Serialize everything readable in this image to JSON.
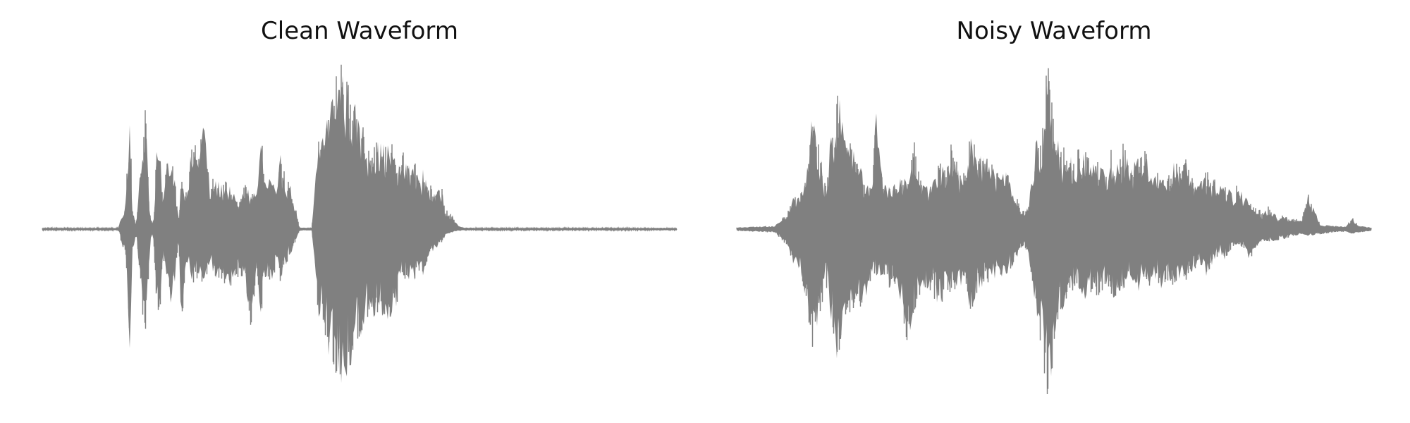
{
  "chart_data": [
    {
      "type": "line",
      "title": "Clean Waveform",
      "xlabel": "",
      "ylabel": "",
      "axes_visible": false,
      "grid": false,
      "color": "#808080",
      "ylim": [
        -1.0,
        1.0
      ],
      "series": [
        {
          "envelope_positions": [
            0.0,
            0.05,
            0.12,
            0.132,
            0.138,
            0.142,
            0.148,
            0.155,
            0.163,
            0.17,
            0.175,
            0.18,
            0.185,
            0.19,
            0.2,
            0.21,
            0.215,
            0.22,
            0.228,
            0.235,
            0.245,
            0.255,
            0.265,
            0.27,
            0.275,
            0.28,
            0.29,
            0.3,
            0.31,
            0.32,
            0.33,
            0.338,
            0.345,
            0.35,
            0.36,
            0.37,
            0.375,
            0.385,
            0.395,
            0.405,
            0.415,
            0.425,
            0.435,
            0.44,
            0.47,
            0.51,
            0.54,
            0.55,
            0.56,
            0.568,
            0.575,
            0.585,
            0.59,
            0.595,
            0.6,
            0.605,
            0.61,
            0.62,
            0.63,
            0.635,
            0.645,
            0.655,
            0.665,
            0.675,
            0.685,
            0.69,
            0.7,
            0.71,
            0.72,
            0.73,
            0.74,
            0.75,
            0.76,
            0.8,
            0.9,
            0.98,
            1.0
          ],
          "envelope_upper": [
            0.005,
            0.005,
            0.006,
            0.2,
            0.75,
            0.15,
            0.02,
            0.4,
            0.77,
            0.08,
            0.02,
            0.45,
            0.5,
            0.18,
            0.52,
            0.3,
            0.05,
            0.42,
            0.18,
            0.5,
            0.48,
            0.72,
            0.2,
            0.32,
            0.3,
            0.27,
            0.3,
            0.22,
            0.15,
            0.27,
            0.22,
            0.25,
            0.6,
            0.3,
            0.33,
            0.2,
            0.45,
            0.32,
            0.22,
            0.01,
            0.008,
            0.01,
            0.57,
            0.6,
            1.0,
            0.55,
            0.5,
            0.52,
            0.35,
            0.47,
            0.37,
            0.4,
            0.42,
            0.27,
            0.35,
            0.32,
            0.27,
            0.2,
            0.27,
            0.12,
            0.1,
            0.02,
            0.01,
            0.008,
            0.006,
            0.005,
            0.005,
            0.005,
            0.005,
            0.005,
            0.005,
            0.005,
            0.005,
            0.005,
            0.005,
            0.008,
            0.005
          ],
          "envelope_lower": [
            -0.005,
            -0.005,
            -0.006,
            -0.2,
            -0.73,
            -0.15,
            -0.02,
            -0.38,
            -0.76,
            -0.08,
            -0.02,
            -0.45,
            -0.53,
            -0.18,
            -0.47,
            -0.3,
            -0.05,
            -0.72,
            -0.18,
            -0.32,
            -0.3,
            -0.32,
            -0.2,
            -0.32,
            -0.3,
            -0.3,
            -0.32,
            -0.35,
            -0.28,
            -0.33,
            -0.6,
            -0.3,
            -0.55,
            -0.3,
            -0.3,
            -0.25,
            -0.3,
            -0.2,
            -0.12,
            -0.01,
            -0.008,
            -0.01,
            -0.58,
            -0.57,
            -1.0,
            -0.52,
            -0.5,
            -0.55,
            -0.45,
            -0.3,
            -0.35,
            -0.32,
            -0.28,
            -0.25,
            -0.28,
            -0.22,
            -0.15,
            -0.12,
            -0.08,
            -0.05,
            -0.02,
            -0.01,
            -0.008,
            -0.006,
            -0.005,
            -0.005,
            -0.005,
            -0.005,
            -0.005,
            -0.005,
            -0.005,
            -0.005,
            -0.005,
            -0.005,
            -0.005,
            -0.008,
            -0.005
          ]
        }
      ]
    },
    {
      "type": "line",
      "title": "Noisy Waveform",
      "xlabel": "",
      "ylabel": "",
      "axes_visible": false,
      "grid": false,
      "color": "#808080",
      "ylim": [
        -1.0,
        1.0
      ],
      "series": [
        {
          "envelope_positions": [
            0.0,
            0.03,
            0.06,
            0.08,
            0.09,
            0.1,
            0.11,
            0.12,
            0.13,
            0.14,
            0.15,
            0.16,
            0.17,
            0.18,
            0.19,
            0.2,
            0.21,
            0.22,
            0.23,
            0.24,
            0.25,
            0.26,
            0.27,
            0.28,
            0.29,
            0.3,
            0.31,
            0.32,
            0.33,
            0.34,
            0.35,
            0.36,
            0.37,
            0.38,
            0.39,
            0.4,
            0.41,
            0.42,
            0.43,
            0.44,
            0.45,
            0.46,
            0.47,
            0.48,
            0.49,
            0.5,
            0.51,
            0.52,
            0.53,
            0.54,
            0.55,
            0.56,
            0.57,
            0.58,
            0.59,
            0.6,
            0.61,
            0.62,
            0.63,
            0.64,
            0.65,
            0.66,
            0.67,
            0.68,
            0.69,
            0.7,
            0.71,
            0.72,
            0.73,
            0.74,
            0.75,
            0.76,
            0.77,
            0.78,
            0.79,
            0.8,
            0.81,
            0.82,
            0.83,
            0.84,
            0.85,
            0.86,
            0.87,
            0.88,
            0.89,
            0.9,
            0.92,
            0.94,
            0.96,
            0.97,
            0.98,
            1.0
          ],
          "envelope_upper": [
            0.01,
            0.015,
            0.02,
            0.1,
            0.2,
            0.22,
            0.4,
            0.75,
            0.5,
            0.25,
            0.6,
            0.83,
            0.52,
            0.5,
            0.45,
            0.3,
            0.25,
            0.7,
            0.28,
            0.26,
            0.27,
            0.32,
            0.3,
            0.55,
            0.3,
            0.25,
            0.28,
            0.4,
            0.35,
            0.53,
            0.35,
            0.38,
            0.58,
            0.4,
            0.47,
            0.45,
            0.35,
            0.37,
            0.3,
            0.2,
            0.1,
            0.15,
            0.5,
            0.6,
            1.0,
            0.73,
            0.45,
            0.52,
            0.4,
            0.48,
            0.45,
            0.37,
            0.42,
            0.35,
            0.48,
            0.38,
            0.52,
            0.35,
            0.42,
            0.5,
            0.4,
            0.33,
            0.38,
            0.3,
            0.45,
            0.35,
            0.42,
            0.3,
            0.27,
            0.35,
            0.3,
            0.28,
            0.25,
            0.22,
            0.27,
            0.2,
            0.15,
            0.12,
            0.1,
            0.14,
            0.08,
            0.08,
            0.07,
            0.06,
            0.05,
            0.21,
            0.03,
            0.02,
            0.015,
            0.07,
            0.02,
            0.01
          ],
          "envelope_lower": [
            -0.01,
            -0.015,
            -0.02,
            -0.1,
            -0.22,
            -0.25,
            -0.45,
            -0.75,
            -0.55,
            -0.3,
            -0.6,
            -0.83,
            -0.5,
            -0.48,
            -0.5,
            -0.42,
            -0.35,
            -0.28,
            -0.3,
            -0.35,
            -0.32,
            -0.45,
            -0.73,
            -0.48,
            -0.38,
            -0.35,
            -0.4,
            -0.45,
            -0.42,
            -0.38,
            -0.35,
            -0.33,
            -0.55,
            -0.35,
            -0.33,
            -0.3,
            -0.28,
            -0.3,
            -0.25,
            -0.18,
            -0.1,
            -0.15,
            -0.52,
            -0.72,
            -1.0,
            -0.74,
            -0.5,
            -0.45,
            -0.35,
            -0.42,
            -0.45,
            -0.35,
            -0.4,
            -0.33,
            -0.38,
            -0.45,
            -0.35,
            -0.3,
            -0.38,
            -0.32,
            -0.35,
            -0.3,
            -0.35,
            -0.33,
            -0.32,
            -0.28,
            -0.3,
            -0.25,
            -0.22,
            -0.28,
            -0.2,
            -0.15,
            -0.18,
            -0.12,
            -0.1,
            -0.12,
            -0.2,
            -0.1,
            -0.07,
            -0.08,
            -0.07,
            -0.06,
            -0.05,
            -0.04,
            -0.03,
            -0.04,
            -0.03,
            -0.02,
            -0.015,
            -0.03,
            -0.02,
            -0.01
          ]
        }
      ]
    }
  ]
}
